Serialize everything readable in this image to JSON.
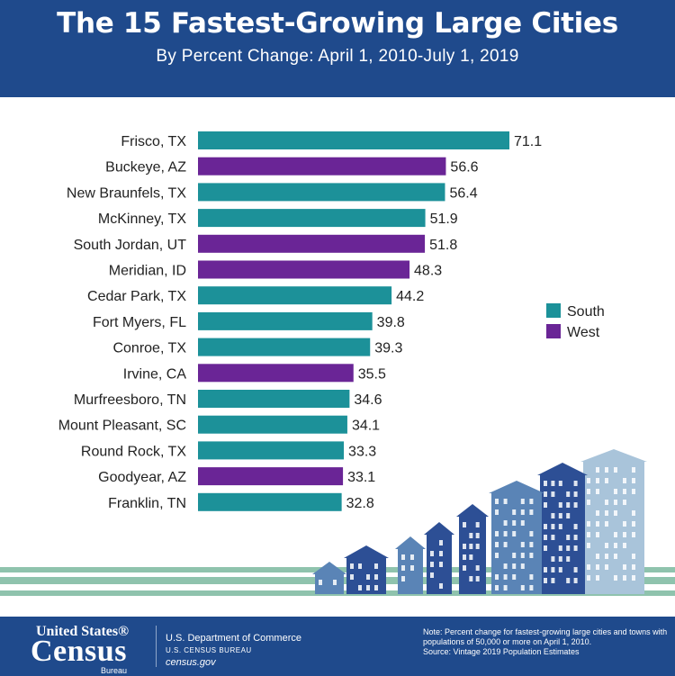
{
  "header": {
    "title": "The 15 Fastest-Growing Large Cities",
    "subtitle": "By Percent Change: April 1, 2010-July 1, 2019"
  },
  "colors": {
    "header_bg": "#1f4a8c",
    "south": "#1c9199",
    "west": "#6a2596",
    "skyline_dark": "#2d4f95",
    "skyline_light": "#5a84b6",
    "skyline_pale": "#a9c4da",
    "ground_band": "#8fc3ad"
  },
  "chart_data": {
    "type": "bar",
    "orientation": "horizontal",
    "categories": [
      "Frisco, TX",
      "Buckeye, AZ",
      "New Braunfels, TX",
      "McKinney, TX",
      "South Jordan, UT",
      "Meridian, ID",
      "Cedar Park, TX",
      "Fort Myers, FL",
      "Conroe, TX",
      "Irvine, CA",
      "Murfreesboro, TN",
      "Mount Pleasant, SC",
      "Round Rock, TX",
      "Goodyear, AZ",
      "Franklin, TN"
    ],
    "values": [
      71.1,
      56.6,
      56.4,
      51.9,
      51.8,
      48.3,
      44.2,
      39.8,
      39.3,
      35.5,
      34.6,
      34.1,
      33.3,
      33.1,
      32.8
    ],
    "regions": [
      "South",
      "West",
      "South",
      "South",
      "West",
      "West",
      "South",
      "South",
      "South",
      "West",
      "South",
      "South",
      "South",
      "West",
      "South"
    ],
    "legend": [
      "South",
      "West"
    ],
    "legend_position": "right",
    "grid": false,
    "xlim": [
      0,
      75
    ]
  },
  "footer": {
    "logo_top": "United States®",
    "logo_main": "Census",
    "logo_sub": "Bureau",
    "department": "U.S. Department of Commerce",
    "bureau": "U.S. CENSUS BUREAU",
    "website": "census.gov",
    "note": "Note: Percent change for fastest-growing large cities and towns with populations of 50,000 or more on April 1, 2010.",
    "source": "Source: Vintage 2019 Population Estimates"
  }
}
